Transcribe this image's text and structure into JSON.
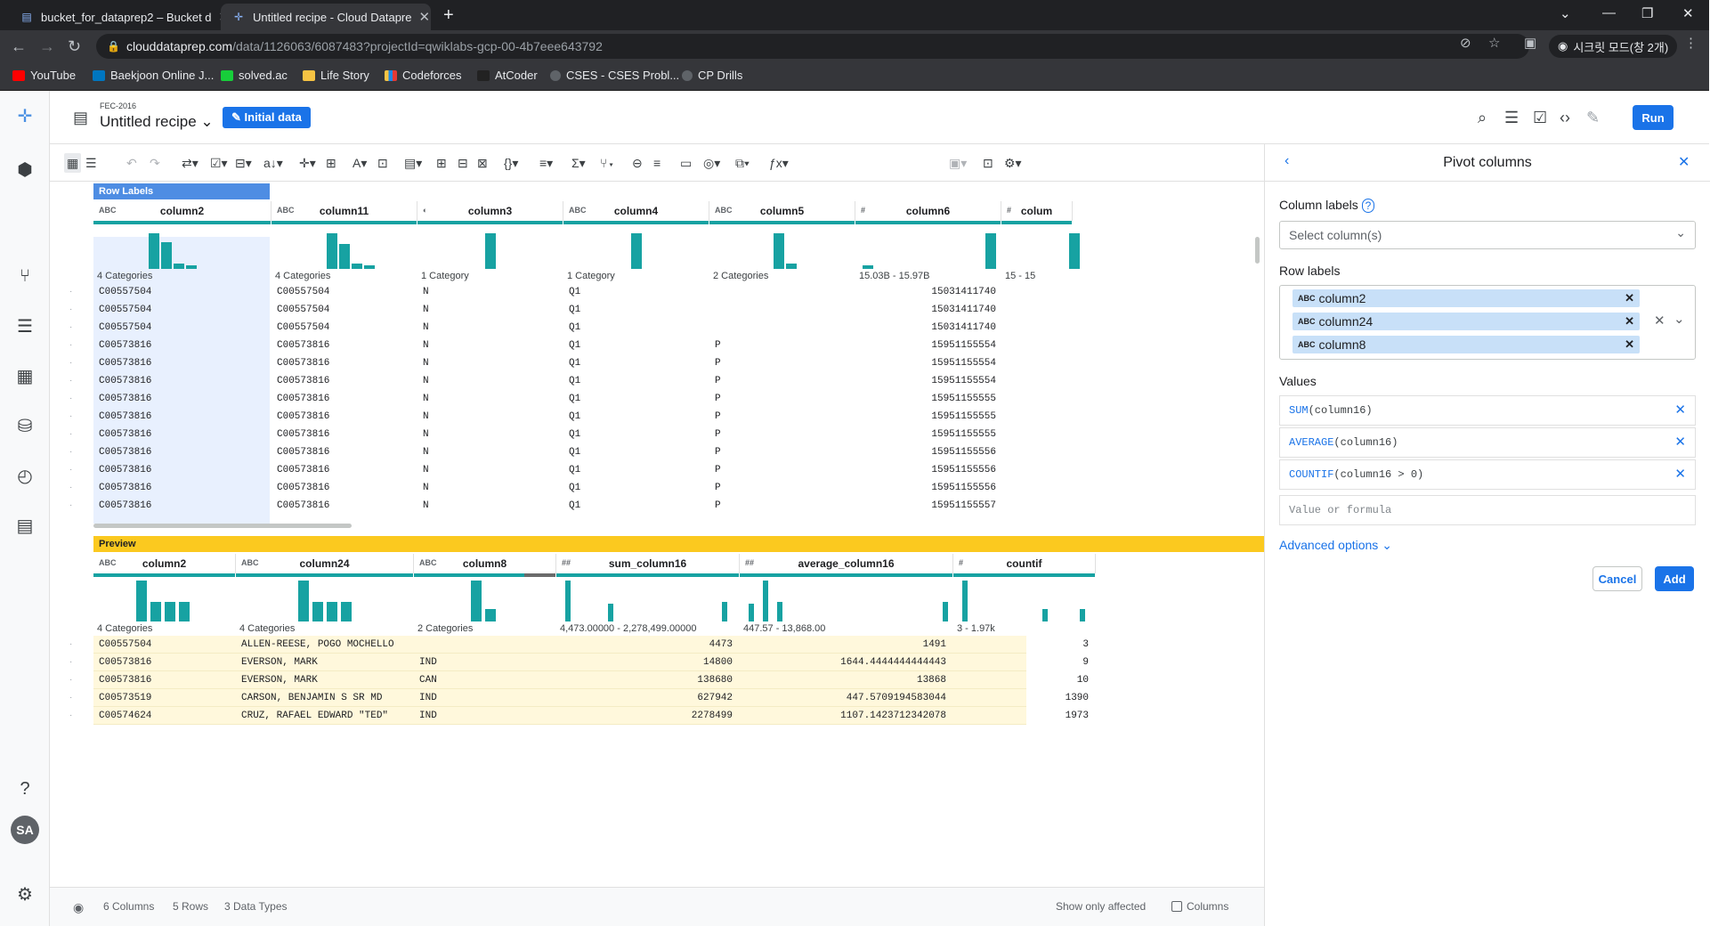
{
  "browser": {
    "tabs": [
      {
        "title": "bucket_for_dataprep2 – Bucket d",
        "active": false
      },
      {
        "title": "Untitled recipe - Cloud Datapre",
        "active": true
      }
    ],
    "url_host": "clouddataprep.com",
    "url_path": "/data/1126063/6087483?projectId=qwiklabs-gcp-00-4b7eee643792",
    "incognito_label": "시크릿 모드(창 2개)",
    "bookmarks": [
      "YouTube",
      "Baekjoon Online J...",
      "solved.ac",
      "Life Story",
      "Codeforces",
      "AtCoder",
      "CSES - CSES Probl...",
      "CP Drills"
    ]
  },
  "header": {
    "dataset": "FEC-2016",
    "recipe_title": "Untitled recipe",
    "initial_data": "Initial data",
    "run": "Run"
  },
  "grid": {
    "row_labels_tag": "Row Labels",
    "columns": [
      {
        "type": "ABC",
        "name": "column2",
        "summary": "4 Categories"
      },
      {
        "type": "ABC",
        "name": "column11",
        "summary": "4 Categories"
      },
      {
        "type": "◐",
        "name": "column3",
        "summary": "1 Category"
      },
      {
        "type": "ABC",
        "name": "column4",
        "summary": "1 Category"
      },
      {
        "type": "ABC",
        "name": "column5",
        "summary": "2 Categories"
      },
      {
        "type": "#",
        "name": "column6",
        "summary": "15.03B - 15.97B"
      },
      {
        "type": "#",
        "name": "colum",
        "summary": "15 - 15"
      }
    ],
    "rows": [
      [
        "C00557504",
        "C00557504",
        "N",
        "Q1",
        "",
        "15031411740"
      ],
      [
        "C00557504",
        "C00557504",
        "N",
        "Q1",
        "",
        "15031411740"
      ],
      [
        "C00557504",
        "C00557504",
        "N",
        "Q1",
        "",
        "15031411740"
      ],
      [
        "C00573816",
        "C00573816",
        "N",
        "Q1",
        "P",
        "15951155554"
      ],
      [
        "C00573816",
        "C00573816",
        "N",
        "Q1",
        "P",
        "15951155554"
      ],
      [
        "C00573816",
        "C00573816",
        "N",
        "Q1",
        "P",
        "15951155554"
      ],
      [
        "C00573816",
        "C00573816",
        "N",
        "Q1",
        "P",
        "15951155555"
      ],
      [
        "C00573816",
        "C00573816",
        "N",
        "Q1",
        "P",
        "15951155555"
      ],
      [
        "C00573816",
        "C00573816",
        "N",
        "Q1",
        "P",
        "15951155555"
      ],
      [
        "C00573816",
        "C00573816",
        "N",
        "Q1",
        "P",
        "15951155556"
      ],
      [
        "C00573816",
        "C00573816",
        "N",
        "Q1",
        "P",
        "15951155556"
      ],
      [
        "C00573816",
        "C00573816",
        "N",
        "Q1",
        "P",
        "15951155556"
      ],
      [
        "C00573816",
        "C00573816",
        "N",
        "Q1",
        "P",
        "15951155557"
      ]
    ]
  },
  "preview": {
    "tag": "Preview",
    "columns": [
      {
        "type": "ABC",
        "name": "column2",
        "summary": "4 Categories"
      },
      {
        "type": "ABC",
        "name": "column24",
        "summary": "4 Categories"
      },
      {
        "type": "ABC",
        "name": "column8",
        "summary": "2 Categories"
      },
      {
        "type": "##",
        "name": "sum_column16",
        "summary": "4,473.00000 - 2,278,499.00000"
      },
      {
        "type": "##",
        "name": "average_column16",
        "summary": "447.57 - 13,868.00"
      },
      {
        "type": "#",
        "name": "countif",
        "summary": "3 - 1.97k"
      }
    ],
    "rows": [
      [
        "C00557504",
        "ALLEN-REESE, POGO MOCHELLO",
        "",
        "4473",
        "1491",
        "3"
      ],
      [
        "C00573816",
        "EVERSON, MARK",
        "IND",
        "14800",
        "1644.4444444444443",
        "9"
      ],
      [
        "C00573816",
        "EVERSON, MARK",
        "CAN",
        "138680",
        "13868",
        "10"
      ],
      [
        "C00573519",
        "CARSON, BENJAMIN S SR MD",
        "IND",
        "627942",
        "447.5709194583044",
        "1390"
      ],
      [
        "C00574624",
        "CRUZ, RAFAEL EDWARD \"TED\"",
        "IND",
        "2278499",
        "1107.1423712342078",
        "1973"
      ]
    ]
  },
  "status": {
    "columns": "6 Columns",
    "rows": "5 Rows",
    "types": "3 Data Types",
    "show_only": "Show only affected",
    "columns_check": "Columns"
  },
  "panel": {
    "title": "Pivot columns",
    "column_labels": "Column labels",
    "select_placeholder": "Select column(s)",
    "row_labels": "Row labels",
    "row_label_chips": [
      "column2",
      "column24",
      "column8"
    ],
    "values_label": "Values",
    "values": [
      {
        "fn": "SUM",
        "arg": "(column16)"
      },
      {
        "fn": "AVERAGE",
        "arg": "(column16)"
      },
      {
        "fn": "COUNTIF",
        "arg": "(column16 > 0)"
      }
    ],
    "value_placeholder": "Value or formula",
    "advanced": "Advanced options",
    "cancel": "Cancel",
    "add": "Add"
  },
  "colors": {
    "accent": "#1a73e8",
    "histogram": "#17a2a2",
    "preview": "#fbc91f"
  }
}
